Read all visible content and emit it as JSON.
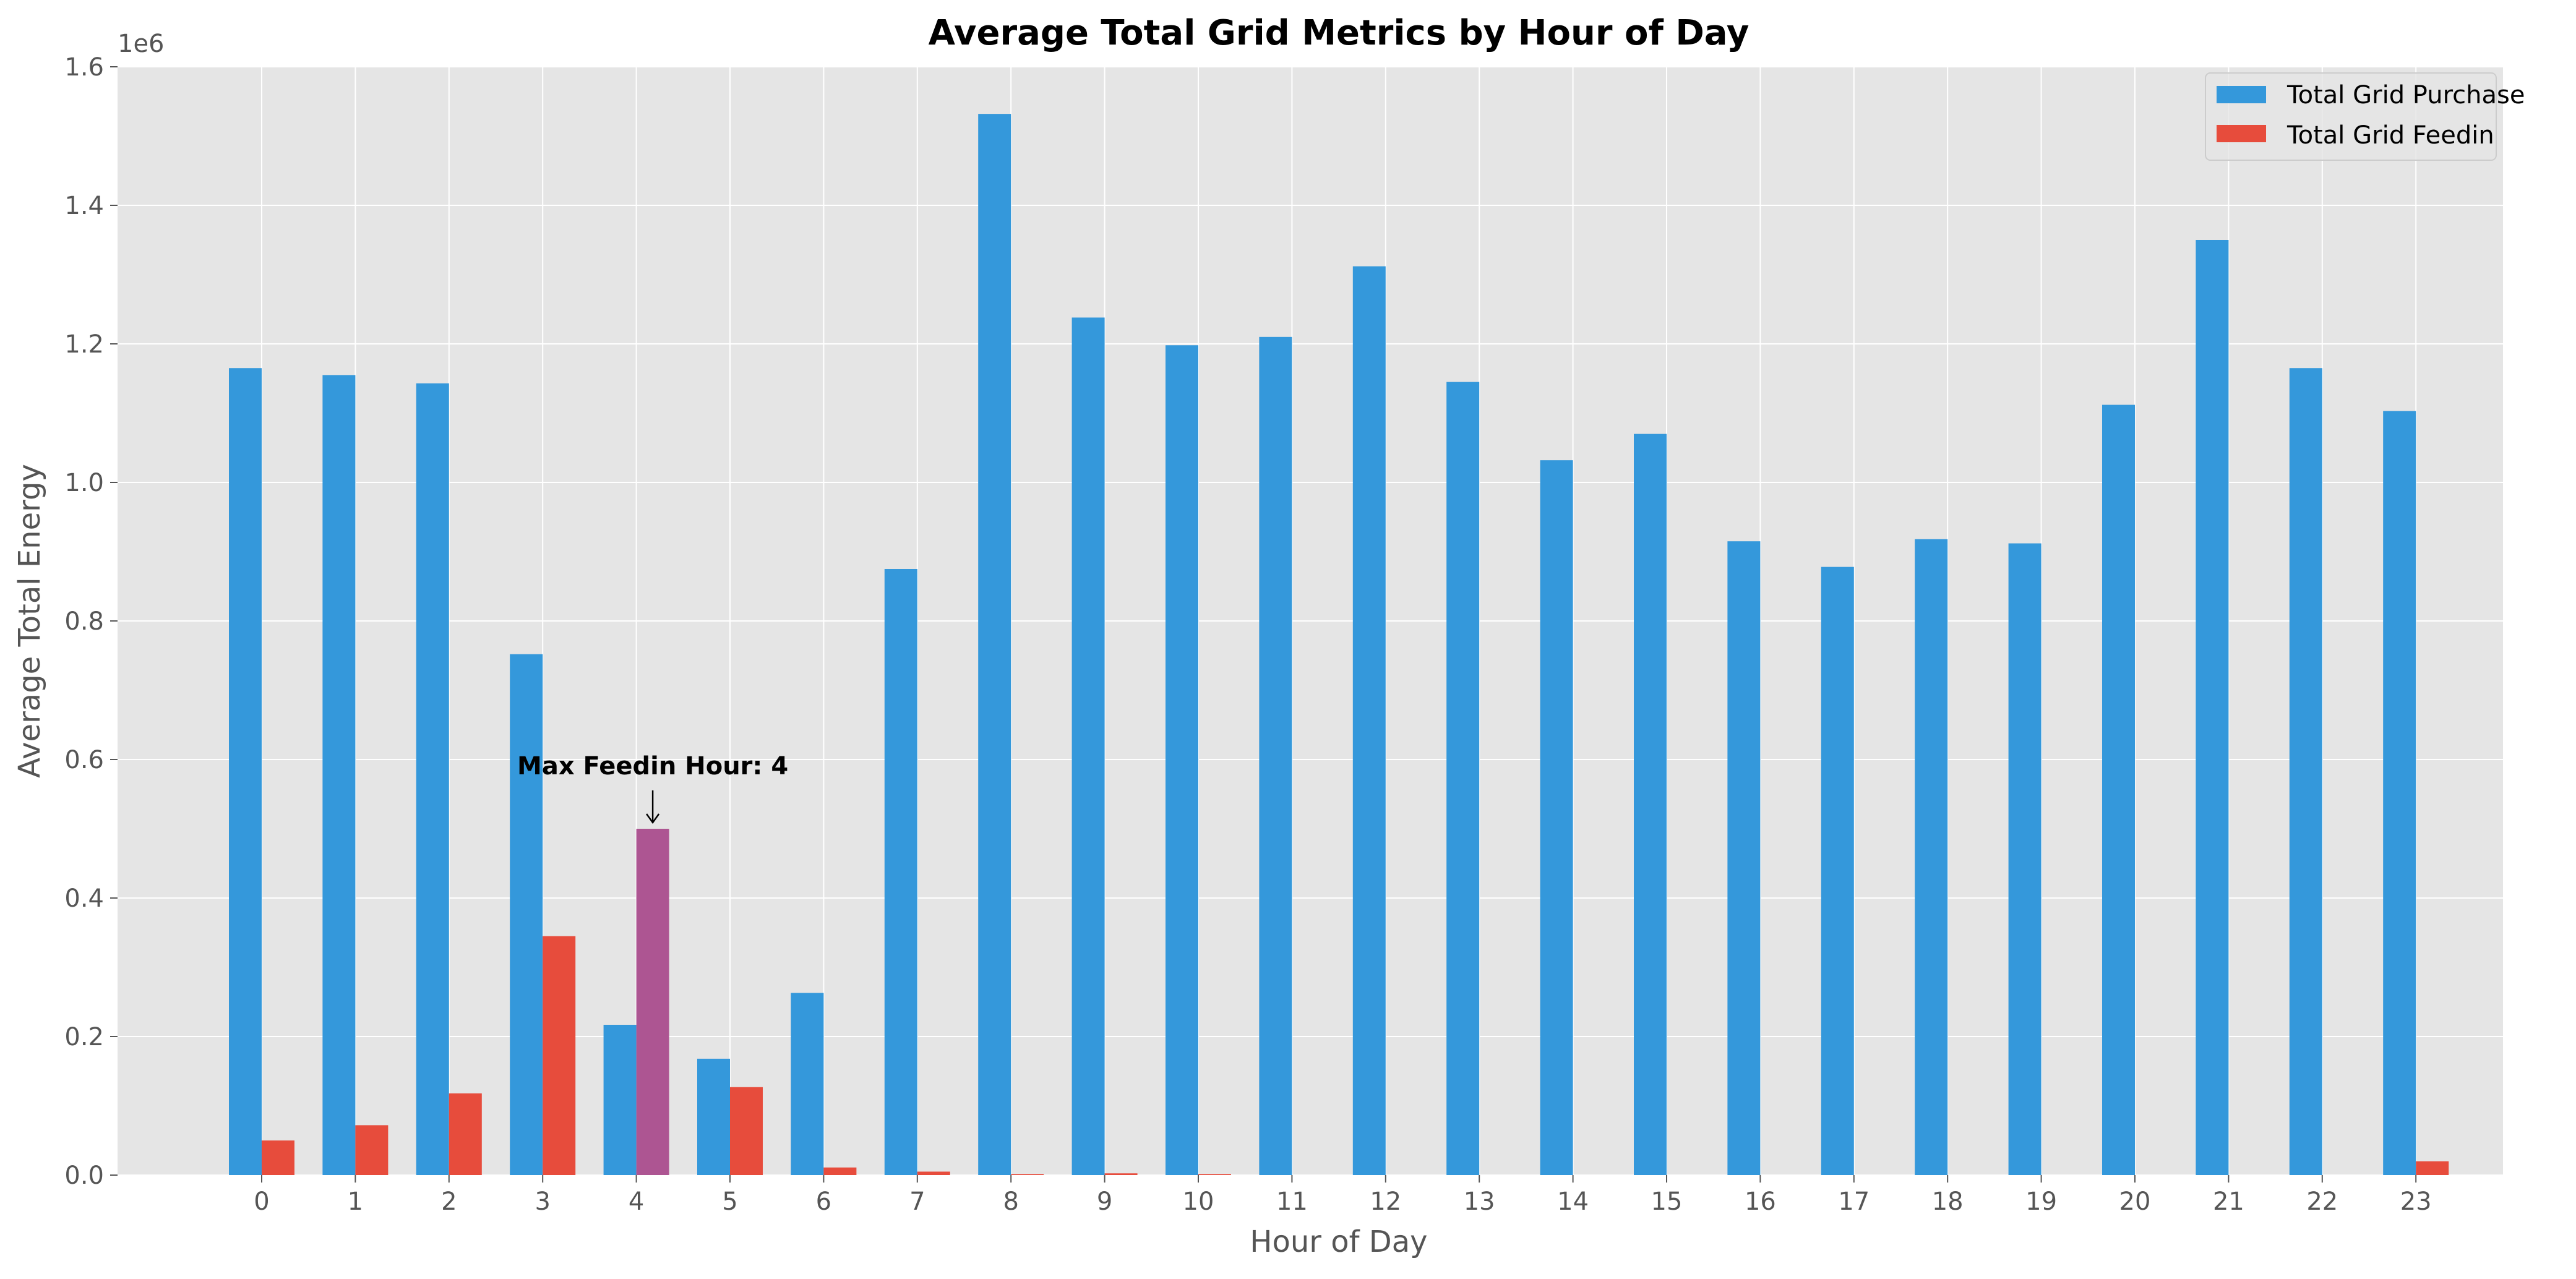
{
  "chart_data": {
    "type": "bar",
    "title": "Average Total Grid Metrics by Hour of Day",
    "xlabel": "Hour of Day",
    "ylabel": "Average Total Energy",
    "y_scale_label": "1e6",
    "ylim": [
      0,
      1600000
    ],
    "y_ticks": [
      0,
      200000,
      400000,
      600000,
      800000,
      1000000,
      1200000,
      1400000,
      1600000
    ],
    "y_tick_labels": [
      "0.0",
      "0.2",
      "0.4",
      "0.6",
      "0.8",
      "1.0",
      "1.2",
      "1.4",
      "1.6"
    ],
    "categories": [
      "0",
      "1",
      "2",
      "3",
      "4",
      "5",
      "6",
      "7",
      "8",
      "9",
      "10",
      "11",
      "12",
      "13",
      "14",
      "15",
      "16",
      "17",
      "18",
      "19",
      "20",
      "21",
      "22",
      "23"
    ],
    "series": [
      {
        "name": "Total Grid Purchase",
        "color": "#3498db",
        "values": [
          1165000,
          1155000,
          1143000,
          752000,
          217000,
          168000,
          263000,
          875000,
          1532000,
          1238000,
          1198000,
          1210000,
          1312000,
          1145000,
          1032000,
          1070000,
          915000,
          878000,
          918000,
          912000,
          1112000,
          1350000,
          1165000,
          1103000
        ]
      },
      {
        "name": "Total Grid Feedin",
        "color": "#e74c3c",
        "highlight_index": 4,
        "highlight_color": "#ad5592",
        "values": [
          50000,
          72000,
          118000,
          345000,
          500000,
          127000,
          11000,
          5000,
          1500,
          2500,
          1500,
          0,
          0,
          0,
          0,
          0,
          0,
          0,
          0,
          0,
          0,
          0,
          0,
          20000
        ]
      }
    ],
    "annotation": {
      "text": "Max Feedin Hour: 4",
      "category_index": 4,
      "series_index": 1
    },
    "legend_position": "top-right",
    "grid": true
  }
}
